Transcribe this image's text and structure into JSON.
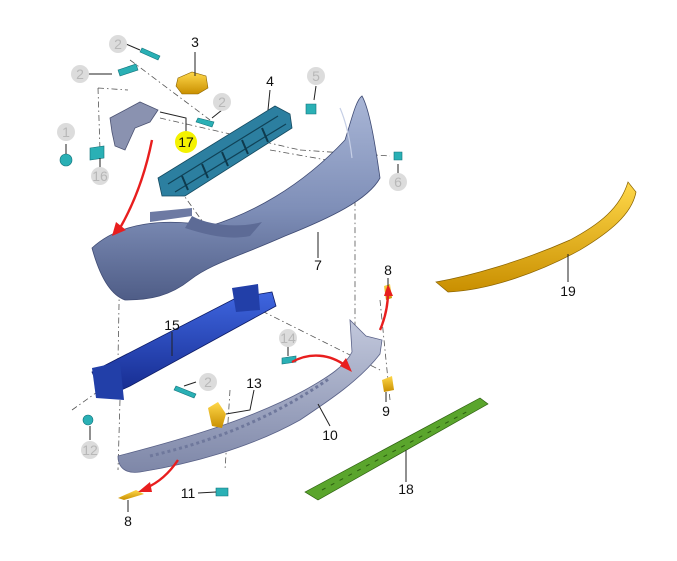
{
  "parts": [
    {
      "id": "c2a",
      "number": "2",
      "style": "circled"
    },
    {
      "id": "c2b",
      "number": "2",
      "style": "circled"
    },
    {
      "id": "c2c",
      "number": "2",
      "style": "circled"
    },
    {
      "id": "c2d",
      "number": "2",
      "style": "circled"
    },
    {
      "id": "c1",
      "number": "1",
      "style": "circled"
    },
    {
      "id": "c16",
      "number": "16",
      "style": "circled"
    },
    {
      "id": "c5",
      "number": "5",
      "style": "circled"
    },
    {
      "id": "c6",
      "number": "6",
      "style": "circled"
    },
    {
      "id": "c14",
      "number": "14",
      "style": "circled"
    },
    {
      "id": "c12",
      "number": "12",
      "style": "circled"
    },
    {
      "id": "n3",
      "number": "3",
      "style": "plain"
    },
    {
      "id": "n4",
      "number": "4",
      "style": "plain"
    },
    {
      "id": "n17",
      "number": "17",
      "style": "highlighted"
    },
    {
      "id": "n7",
      "number": "7",
      "style": "plain"
    },
    {
      "id": "n8a",
      "number": "8",
      "style": "plain"
    },
    {
      "id": "n19",
      "number": "19",
      "style": "plain"
    },
    {
      "id": "n15",
      "number": "15",
      "style": "plain"
    },
    {
      "id": "n13",
      "number": "13",
      "style": "plain"
    },
    {
      "id": "n9",
      "number": "9",
      "style": "plain"
    },
    {
      "id": "n10",
      "number": "10",
      "style": "plain"
    },
    {
      "id": "n18",
      "number": "18",
      "style": "plain"
    },
    {
      "id": "n11",
      "number": "11",
      "style": "plain"
    },
    {
      "id": "n8b",
      "number": "8",
      "style": "plain"
    }
  ],
  "colors": {
    "bumper_cover": "#7f8fb8",
    "bumper_cover_dark": "#4f5d87",
    "absorber": "#2c7fa0",
    "reinforcement": "#1f3fbf",
    "bracket": "#8a92b0",
    "lower_trim": "#a5acc8",
    "energy_strip": "#5aa52c",
    "bracket_gold": "#e8b000",
    "fastener": "#2ab0b5",
    "arrow": "#e81e1e",
    "highlight": "#f4f200"
  }
}
